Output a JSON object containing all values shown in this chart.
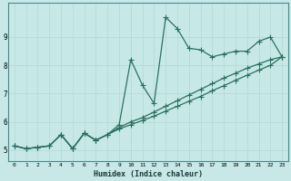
{
  "xlabel": "Humidex (Indice chaleur)",
  "bg_color": "#c8e8e8",
  "line_color": "#2a7060",
  "grid_color": "#b0d8d8",
  "xlim": [
    -0.5,
    23.5
  ],
  "ylim": [
    4.6,
    10.2
  ],
  "yticks": [
    5,
    6,
    7,
    8,
    9
  ],
  "xticks": [
    0,
    1,
    2,
    3,
    4,
    5,
    6,
    7,
    8,
    9,
    10,
    11,
    12,
    13,
    14,
    15,
    16,
    17,
    18,
    19,
    20,
    21,
    22,
    23
  ],
  "series1_x": [
    0,
    1,
    2,
    3,
    4,
    5,
    6,
    7,
    8,
    9,
    10,
    11,
    12,
    13,
    14,
    15,
    16,
    17,
    18,
    19,
    20,
    21,
    22,
    23
  ],
  "series1_y": [
    5.15,
    5.05,
    5.1,
    5.15,
    5.55,
    5.05,
    5.6,
    5.35,
    5.55,
    5.9,
    8.2,
    7.3,
    6.65,
    9.7,
    9.3,
    8.6,
    8.55,
    8.3,
    8.4,
    8.5,
    8.5,
    8.85,
    9.0,
    8.3
  ],
  "series2_x": [
    0,
    1,
    2,
    3,
    4,
    5,
    6,
    7,
    8,
    9,
    10,
    11,
    12,
    13,
    14,
    15,
    16,
    17,
    18,
    19,
    20,
    21,
    22,
    23
  ],
  "series2_y": [
    5.15,
    5.05,
    5.1,
    5.15,
    5.55,
    5.05,
    5.6,
    5.35,
    5.55,
    5.8,
    6.0,
    6.15,
    6.35,
    6.55,
    6.75,
    6.95,
    7.15,
    7.35,
    7.55,
    7.72,
    7.9,
    8.05,
    8.2,
    8.3
  ],
  "series3_x": [
    0,
    1,
    2,
    3,
    4,
    5,
    6,
    7,
    8,
    9,
    10,
    11,
    12,
    13,
    14,
    15,
    16,
    17,
    18,
    19,
    20,
    21,
    22,
    23
  ],
  "series3_y": [
    5.15,
    5.05,
    5.1,
    5.15,
    5.55,
    5.05,
    5.6,
    5.35,
    5.55,
    5.75,
    5.9,
    6.05,
    6.2,
    6.38,
    6.55,
    6.73,
    6.9,
    7.1,
    7.28,
    7.47,
    7.65,
    7.83,
    8.0,
    8.3
  ]
}
